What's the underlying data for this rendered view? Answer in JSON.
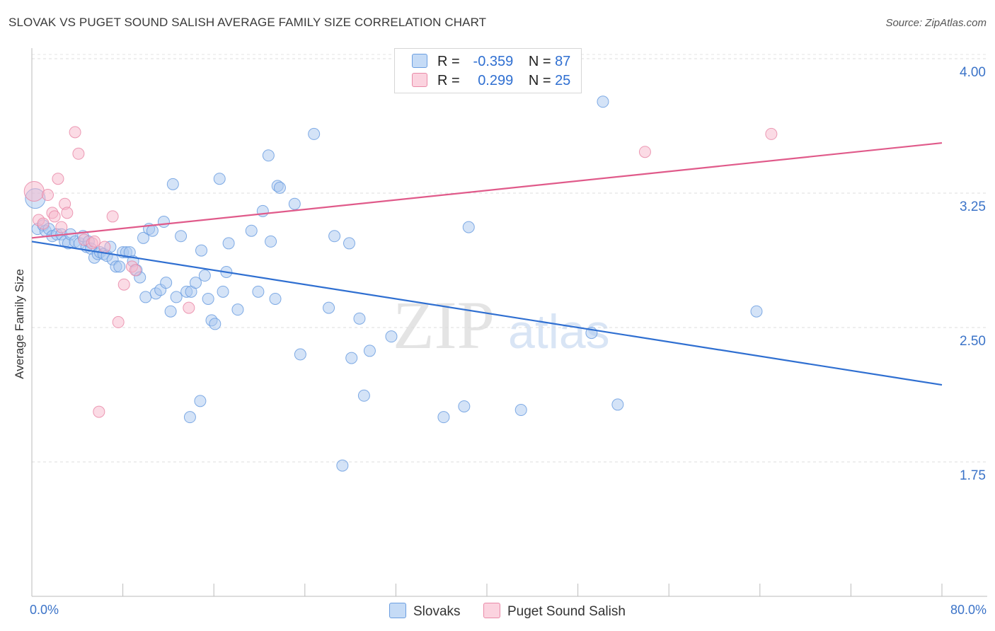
{
  "title": "SLOVAK VS PUGET SOUND SALISH AVERAGE FAMILY SIZE CORRELATION CHART",
  "source": "Source: ZipAtlas.com",
  "legend": {
    "rows": [
      {
        "r_label": "R =",
        "r_value": "-0.359",
        "n_label": "N =",
        "n_value": "87",
        "color": "#a9c8f0"
      },
      {
        "r_label": "R =",
        "r_value": "0.299",
        "n_label": "N =",
        "n_value": "25",
        "color": "#f7b8cb"
      }
    ]
  },
  "bottom_legend": {
    "series1": "Slovaks",
    "series2": "Puget Sound Salish"
  },
  "x_axis": {
    "min_label": "0.0%",
    "max_label": "80.0%"
  },
  "chart_data": {
    "type": "scatter",
    "title": "SLOVAK VS PUGET SOUND SALISH AVERAGE FAMILY SIZE CORRELATION CHART",
    "xlabel": "",
    "ylabel": "Average Family Size",
    "xlim": [
      0,
      80
    ],
    "ylim": [
      1.0,
      4.2
    ],
    "yticks": [
      1.75,
      2.5,
      3.25,
      4.0
    ],
    "ytick_labels": [
      "1.75",
      "2.50",
      "3.25",
      "4.00"
    ],
    "grid": "horizontal dashed",
    "legend_position": "top-center",
    "series": [
      {
        "name": "Slovaks",
        "color": "#6b9ee0",
        "fill": "#a9c8f0",
        "trend": [
          [
            0,
            2.98
          ],
          [
            80,
            2.18
          ]
        ],
        "points": [
          [
            0.3,
            3.22
          ],
          [
            0.5,
            3.05
          ],
          [
            1.0,
            3.07
          ],
          [
            1.2,
            3.04
          ],
          [
            1.5,
            3.05
          ],
          [
            1.8,
            3.01
          ],
          [
            2.2,
            3.02
          ],
          [
            2.6,
            3.02
          ],
          [
            2.9,
            2.98
          ],
          [
            3.2,
            2.97
          ],
          [
            3.4,
            3.02
          ],
          [
            3.8,
            2.98
          ],
          [
            4.2,
            2.97
          ],
          [
            4.5,
            3.01
          ],
          [
            4.8,
            2.95
          ],
          [
            5.0,
            2.98
          ],
          [
            5.2,
            2.94
          ],
          [
            5.5,
            2.89
          ],
          [
            5.8,
            2.91
          ],
          [
            6.0,
            2.92
          ],
          [
            6.3,
            2.91
          ],
          [
            6.6,
            2.9
          ],
          [
            6.9,
            2.95
          ],
          [
            7.1,
            2.88
          ],
          [
            7.4,
            2.84
          ],
          [
            7.7,
            2.84
          ],
          [
            8.0,
            2.92
          ],
          [
            8.3,
            2.92
          ],
          [
            8.6,
            2.92
          ],
          [
            8.9,
            2.87
          ],
          [
            9.2,
            2.82
          ],
          [
            9.5,
            2.78
          ],
          [
            9.8,
            3.0
          ],
          [
            10.0,
            2.67
          ],
          [
            10.3,
            3.05
          ],
          [
            10.6,
            3.04
          ],
          [
            10.9,
            2.69
          ],
          [
            11.3,
            2.71
          ],
          [
            11.6,
            3.09
          ],
          [
            11.8,
            2.75
          ],
          [
            12.2,
            2.59
          ],
          [
            12.4,
            3.3
          ],
          [
            12.7,
            2.67
          ],
          [
            13.1,
            3.01
          ],
          [
            13.6,
            2.7
          ],
          [
            14.0,
            2.7
          ],
          [
            14.4,
            2.75
          ],
          [
            14.9,
            2.93
          ],
          [
            15.2,
            2.79
          ],
          [
            15.5,
            2.66
          ],
          [
            15.8,
            2.54
          ],
          [
            16.1,
            2.52
          ],
          [
            16.5,
            3.33
          ],
          [
            16.8,
            2.7
          ],
          [
            17.1,
            2.81
          ],
          [
            17.3,
            2.97
          ],
          [
            18.1,
            2.6
          ],
          [
            19.3,
            3.04
          ],
          [
            19.9,
            2.7
          ],
          [
            20.3,
            3.15
          ],
          [
            20.8,
            3.46
          ],
          [
            21.0,
            2.98
          ],
          [
            21.4,
            2.66
          ],
          [
            21.6,
            3.29
          ],
          [
            21.8,
            3.28
          ],
          [
            23.1,
            3.19
          ],
          [
            23.6,
            2.35
          ],
          [
            24.8,
            3.58
          ],
          [
            26.1,
            2.61
          ],
          [
            26.6,
            3.01
          ],
          [
            27.3,
            1.73
          ],
          [
            27.9,
            2.97
          ],
          [
            28.1,
            2.33
          ],
          [
            28.8,
            2.55
          ],
          [
            29.2,
            2.12
          ],
          [
            29.7,
            2.37
          ],
          [
            31.6,
            2.45
          ],
          [
            36.2,
            2.0
          ],
          [
            38.0,
            2.06
          ],
          [
            38.4,
            3.06
          ],
          [
            43.0,
            2.04
          ],
          [
            49.2,
            2.47
          ],
          [
            50.2,
            3.76
          ],
          [
            51.5,
            2.07
          ],
          [
            63.7,
            2.59
          ],
          [
            13.9,
            2.0
          ],
          [
            14.8,
            2.09
          ]
        ]
      },
      {
        "name": "Puget Sound Salish",
        "color": "#e98aa8",
        "fill": "#f7b8cb",
        "trend": [
          [
            0,
            3.0
          ],
          [
            80,
            3.53
          ]
        ],
        "points": [
          [
            0.2,
            3.26
          ],
          [
            0.6,
            3.1
          ],
          [
            1.0,
            3.08
          ],
          [
            1.4,
            3.24
          ],
          [
            1.8,
            3.14
          ],
          [
            2.0,
            3.12
          ],
          [
            2.3,
            3.33
          ],
          [
            2.6,
            3.06
          ],
          [
            2.9,
            3.19
          ],
          [
            3.1,
            3.14
          ],
          [
            3.8,
            3.59
          ],
          [
            4.1,
            3.47
          ],
          [
            4.6,
            2.99
          ],
          [
            5.3,
            2.97
          ],
          [
            5.5,
            2.98
          ],
          [
            5.9,
            2.03
          ],
          [
            6.4,
            2.95
          ],
          [
            7.1,
            3.12
          ],
          [
            7.6,
            2.53
          ],
          [
            8.1,
            2.74
          ],
          [
            8.8,
            2.84
          ],
          [
            9.1,
            2.82
          ],
          [
            13.8,
            2.61
          ],
          [
            53.9,
            3.48
          ],
          [
            65.0,
            3.58
          ]
        ]
      }
    ]
  }
}
